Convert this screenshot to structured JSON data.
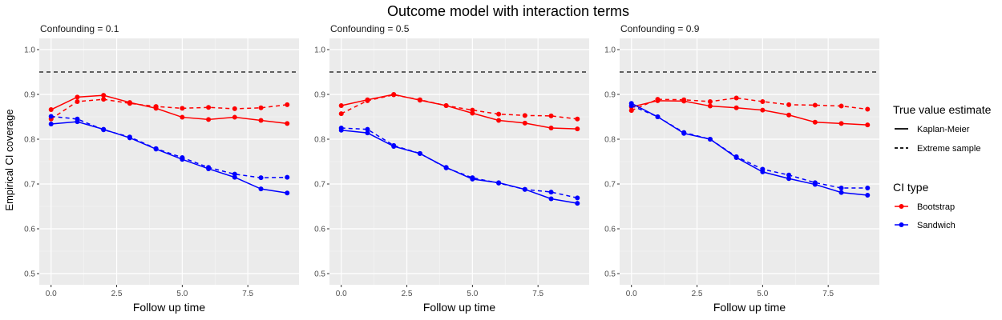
{
  "title": "Outcome model with interaction terms",
  "ylabel": "Empirical CI coverage",
  "xlabel": "Follow up time",
  "reference_line": 0.95,
  "colors": {
    "Bootstrap": "#ff0000",
    "Sandwich": "#0000ff",
    "reference": "#333333",
    "panel_bg": "#ebebeb",
    "grid": "#ffffff"
  },
  "legend": {
    "linetype_title": "True value estimate",
    "linetype_items": [
      {
        "label": "Kaplan-Meier",
        "style": "solid"
      },
      {
        "label": "Extreme sample",
        "style": "dashed"
      }
    ],
    "color_title": "CI type",
    "color_items": [
      {
        "label": "Bootstrap",
        "color": "#ff0000"
      },
      {
        "label": "Sandwich",
        "color": "#0000ff"
      }
    ]
  },
  "chart_data": [
    {
      "type": "line",
      "title": "Confounding = 0.1",
      "x": [
        0,
        1,
        2,
        3,
        4,
        5,
        6,
        7,
        8,
        9
      ],
      "xticks": [
        "0.0",
        "2.5",
        "5.0",
        "7.5"
      ],
      "yticks": [
        "0.5",
        "0.6",
        "0.7",
        "0.8",
        "0.9",
        "1.0"
      ],
      "xlim": [
        -0.45,
        9.45
      ],
      "ylim": [
        0.475,
        1.025
      ],
      "series": [
        {
          "name": "Bootstrap - Kaplan-Meier",
          "color": "Bootstrap",
          "style": "solid",
          "values": [
            0.866,
            0.894,
            0.898,
            0.882,
            0.869,
            0.849,
            0.844,
            0.849,
            0.842,
            0.835
          ]
        },
        {
          "name": "Bootstrap - Extreme sample",
          "color": "Bootstrap",
          "style": "dashed",
          "values": [
            0.845,
            0.884,
            0.889,
            0.88,
            0.873,
            0.869,
            0.871,
            0.868,
            0.87,
            0.877
          ]
        },
        {
          "name": "Sandwich - Kaplan-Meier",
          "color": "Sandwich",
          "style": "solid",
          "values": [
            0.834,
            0.839,
            0.822,
            0.803,
            0.778,
            0.755,
            0.734,
            0.715,
            0.689,
            0.68
          ]
        },
        {
          "name": "Sandwich - Extreme sample",
          "color": "Sandwich",
          "style": "dashed",
          "values": [
            0.851,
            0.845,
            0.821,
            0.805,
            0.779,
            0.759,
            0.737,
            0.722,
            0.714,
            0.715
          ]
        }
      ]
    },
    {
      "type": "line",
      "title": "Confounding = 0.5",
      "x": [
        0,
        1,
        2,
        3,
        4,
        5,
        6,
        7,
        8,
        9
      ],
      "xticks": [
        "0.0",
        "2.5",
        "5.0",
        "7.5"
      ],
      "yticks": [
        "0.5",
        "0.6",
        "0.7",
        "0.8",
        "0.9",
        "1.0"
      ],
      "xlim": [
        -0.45,
        9.45
      ],
      "ylim": [
        0.475,
        1.025
      ],
      "series": [
        {
          "name": "Bootstrap - Kaplan-Meier",
          "color": "Bootstrap",
          "style": "solid",
          "values": [
            0.875,
            0.888,
            0.9,
            0.887,
            0.875,
            0.858,
            0.842,
            0.836,
            0.825,
            0.823
          ]
        },
        {
          "name": "Bootstrap - Extreme sample",
          "color": "Bootstrap",
          "style": "dashed",
          "values": [
            0.857,
            0.886,
            0.899,
            0.888,
            0.875,
            0.865,
            0.856,
            0.853,
            0.852,
            0.845
          ]
        },
        {
          "name": "Sandwich - Kaplan-Meier",
          "color": "Sandwich",
          "style": "solid",
          "values": [
            0.82,
            0.814,
            0.784,
            0.768,
            0.737,
            0.711,
            0.703,
            0.688,
            0.667,
            0.657
          ]
        },
        {
          "name": "Sandwich - Extreme sample",
          "color": "Sandwich",
          "style": "dashed",
          "values": [
            0.825,
            0.822,
            0.786,
            0.768,
            0.736,
            0.714,
            0.702,
            0.688,
            0.682,
            0.669
          ]
        }
      ]
    },
    {
      "type": "line",
      "title": "Confounding = 0.9",
      "x": [
        0,
        1,
        2,
        3,
        4,
        5,
        6,
        7,
        8,
        9
      ],
      "xticks": [
        "0.0",
        "2.5",
        "5.0",
        "7.5"
      ],
      "yticks": [
        "0.5",
        "0.6",
        "0.7",
        "0.8",
        "0.9",
        "1.0"
      ],
      "xlim": [
        -0.45,
        9.45
      ],
      "ylim": [
        0.475,
        1.025
      ],
      "series": [
        {
          "name": "Bootstrap - Kaplan-Meier",
          "color": "Bootstrap",
          "style": "solid",
          "values": [
            0.872,
            0.886,
            0.885,
            0.874,
            0.87,
            0.865,
            0.854,
            0.838,
            0.835,
            0.832
          ]
        },
        {
          "name": "Bootstrap - Extreme sample",
          "color": "Bootstrap",
          "style": "dashed",
          "values": [
            0.864,
            0.889,
            0.888,
            0.884,
            0.892,
            0.884,
            0.877,
            0.876,
            0.874,
            0.867
          ]
        },
        {
          "name": "Sandwich - Kaplan-Meier",
          "color": "Sandwich",
          "style": "solid",
          "values": [
            0.88,
            0.85,
            0.813,
            0.8,
            0.759,
            0.727,
            0.712,
            0.699,
            0.681,
            0.675
          ]
        },
        {
          "name": "Sandwich - Extreme sample",
          "color": "Sandwich",
          "style": "dashed",
          "values": [
            0.875,
            0.85,
            0.815,
            0.8,
            0.761,
            0.733,
            0.72,
            0.703,
            0.691,
            0.691
          ]
        }
      ]
    }
  ]
}
